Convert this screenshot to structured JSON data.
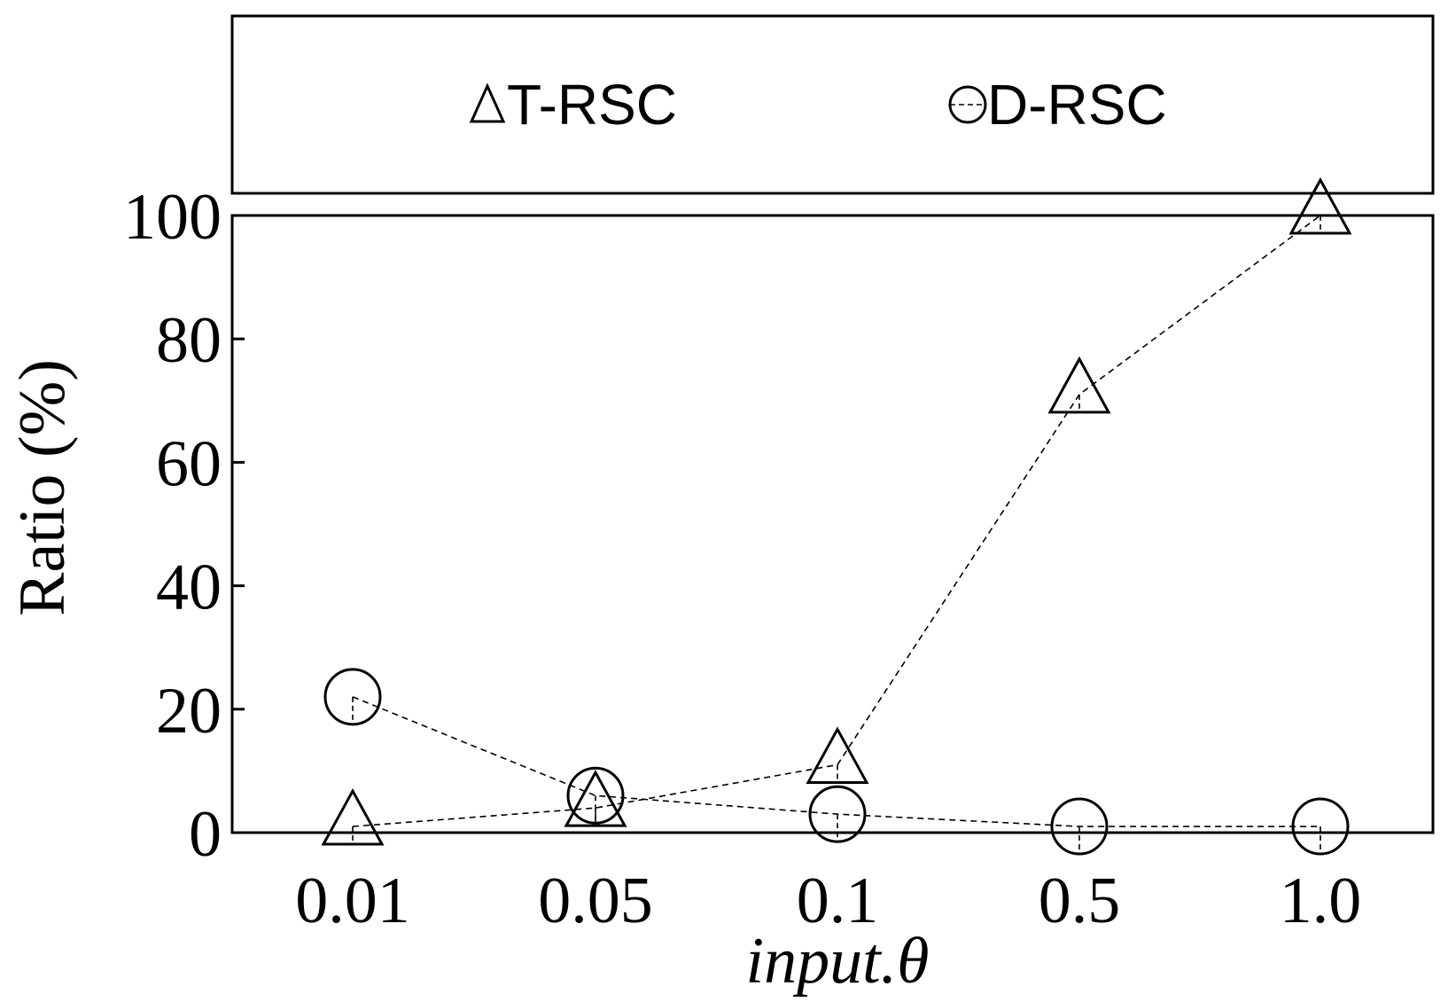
{
  "chart_data": {
    "type": "line",
    "xlabel": "input.θ",
    "ylabel": "Ratio (%)",
    "categories": [
      "0.01",
      "0.05",
      "0.1",
      "0.5",
      "1.0"
    ],
    "ylim": [
      0,
      100
    ],
    "yticks": [
      0,
      20,
      40,
      60,
      80,
      100
    ],
    "grid": false,
    "legend_position": "top",
    "series": [
      {
        "name": "T-RSC",
        "marker": "triangle",
        "values": [
          1,
          4,
          11,
          71,
          100
        ]
      },
      {
        "name": "D-RSC",
        "marker": "circle",
        "values": [
          22,
          6,
          3,
          1,
          1
        ]
      }
    ],
    "line_style": "dashed",
    "line_color": "#000000"
  }
}
